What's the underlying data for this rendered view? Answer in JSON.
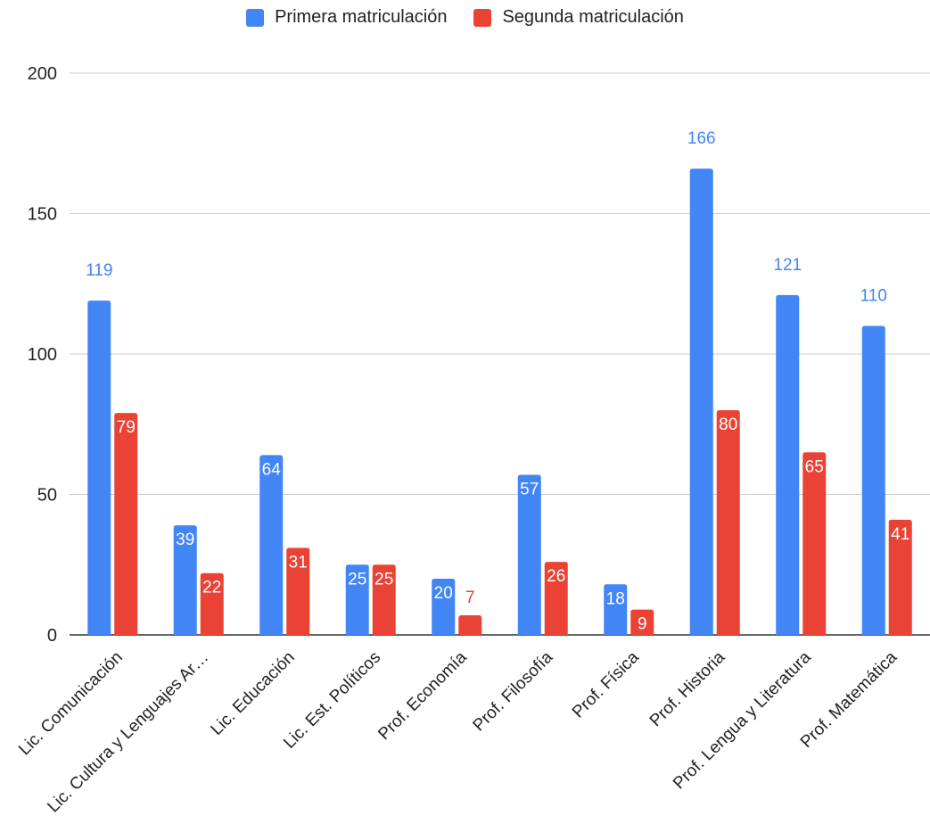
{
  "chart_data": {
    "type": "bar",
    "categories": [
      "Lic. Comunicación",
      "Lic. Cultura y Lenguajes Ar…",
      "Lic. Educación",
      "Lic. Est. Políticos",
      "Prof. Economía",
      "Prof. Filosofía",
      "Prof. Física",
      "Prof. Historia",
      "Prof. Lengua y Literatura",
      "Prof. Matemática"
    ],
    "series": [
      {
        "name": "Primera matriculación",
        "color": "#4285F4",
        "values": [
          119,
          39,
          64,
          25,
          20,
          57,
          18,
          166,
          121,
          110
        ]
      },
      {
        "name": "Segunda matriculación",
        "color": "#EA4335",
        "values": [
          79,
          22,
          31,
          25,
          7,
          26,
          9,
          80,
          65,
          41
        ]
      }
    ],
    "ylim": [
      0,
      200
    ],
    "yticks": [
      0,
      50,
      100,
      150,
      200
    ],
    "grid": true,
    "legend_position": "top"
  }
}
